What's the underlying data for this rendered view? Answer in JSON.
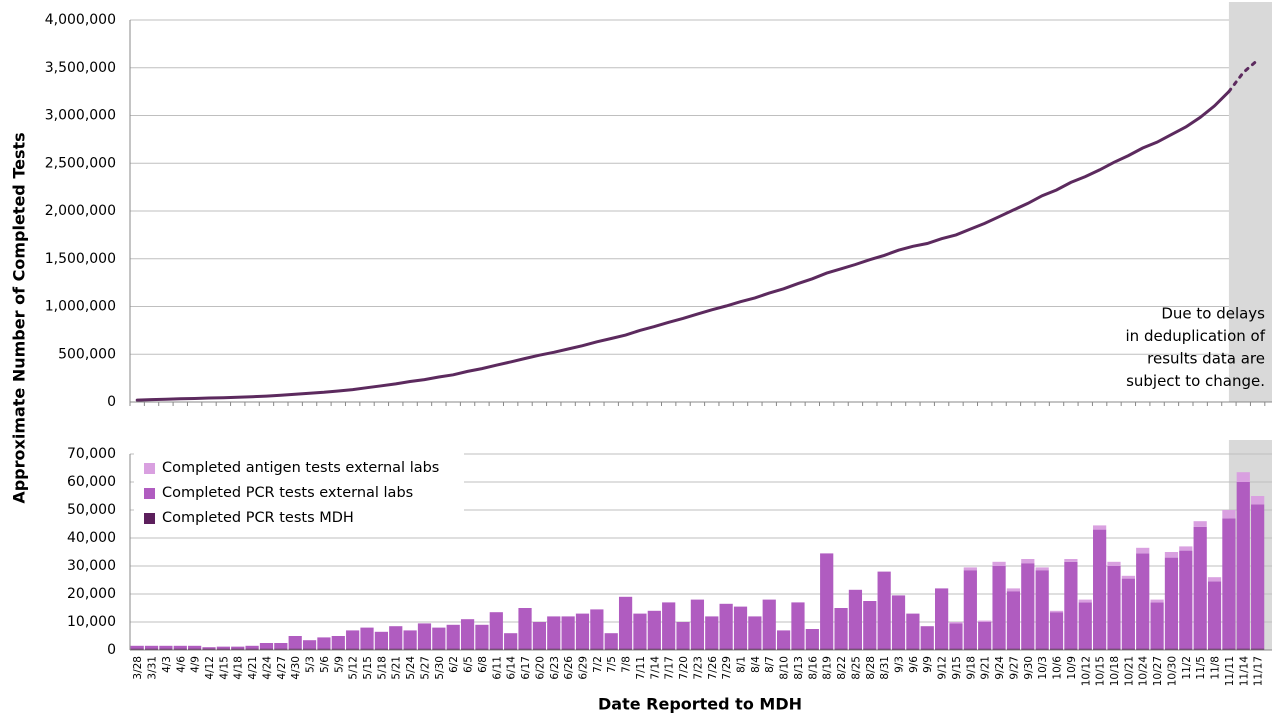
{
  "chart_data": [
    {
      "type": "line",
      "ylabel": "Approximate Number of Completed Tests",
      "ylim": [
        0,
        4000000
      ],
      "yticks": [
        0,
        {
          "value": 500000,
          "label": "500,000"
        },
        {
          "value": 1000000,
          "label": "1,000,000"
        },
        {
          "value": 1500000,
          "label": "1,500,000"
        },
        {
          "value": 2000000,
          "label": "2,000,000"
        },
        {
          "value": 2500000,
          "label": "2,500,000"
        },
        {
          "value": 3000000,
          "label": "3,000,000"
        },
        {
          "value": 3500000,
          "label": "3,500,000"
        },
        {
          "value": 4000000,
          "label": "4,000,000"
        }
      ],
      "grid": true,
      "annotation": [
        "Due to delays",
        "in deduplication of",
        "results data are",
        "subject to change."
      ],
      "series": [
        {
          "color": "#5c2a5e",
          "style": "solid",
          "values": [
            20000,
            25000,
            28000,
            33000,
            37000,
            42000,
            45000,
            50000,
            55000,
            62000,
            70000,
            82000,
            92000,
            102000,
            115000,
            130000,
            150000,
            170000,
            190000,
            215000,
            235000,
            262000,
            285000,
            320000,
            350000,
            385000,
            420000,
            455000,
            490000,
            520000,
            555000,
            590000,
            630000,
            665000,
            700000,
            750000,
            790000,
            835000,
            875000,
            920000,
            965000,
            1005000,
            1050000,
            1090000,
            1140000,
            1185000,
            1240000,
            1290000,
            1350000,
            1395000,
            1440000,
            1490000,
            1535000,
            1590000,
            1630000,
            1660000,
            1710000,
            1750000,
            1810000,
            1870000,
            1940000,
            2010000,
            2080000,
            2160000,
            2220000,
            2300000,
            2360000,
            2430000,
            2510000,
            2580000,
            2660000,
            2720000,
            2800000,
            2880000,
            2980000,
            3100000,
            3250000,
            null,
            null
          ]
        },
        {
          "color": "#5c2a5e",
          "style": "dotted",
          "shaded": true,
          "values": [
            null,
            null,
            null,
            null,
            null,
            null,
            null,
            null,
            null,
            null,
            null,
            null,
            null,
            null,
            null,
            null,
            null,
            null,
            null,
            null,
            null,
            null,
            null,
            null,
            null,
            null,
            null,
            null,
            null,
            null,
            null,
            null,
            null,
            null,
            null,
            null,
            null,
            null,
            null,
            null,
            null,
            null,
            null,
            null,
            null,
            null,
            null,
            null,
            null,
            null,
            null,
            null,
            null,
            null,
            null,
            null,
            null,
            null,
            null,
            null,
            null,
            null,
            null,
            null,
            null,
            null,
            null,
            null,
            null,
            null,
            null,
            null,
            null,
            null,
            null,
            null,
            3250000,
            3450000,
            3580000
          ]
        }
      ]
    },
    {
      "type": "stacked_bar",
      "xlabel": "Date Reported to MDH",
      "ylim": [
        0,
        70000
      ],
      "yticks": [
        0,
        {
          "value": 10000,
          "label": "10,000"
        },
        {
          "value": 20000,
          "label": "20,000"
        },
        {
          "value": 30000,
          "label": "30,000"
        },
        {
          "value": 40000,
          "label": "40,000"
        },
        {
          "value": 50000,
          "label": "50,000"
        },
        {
          "value": 60000,
          "label": "60,000"
        },
        {
          "value": 70000,
          "label": "70,000"
        }
      ],
      "grid": true,
      "legend": "upper left",
      "categories": [
        "3/28",
        "3/31",
        "4/3",
        "4/6",
        "4/9",
        "4/12",
        "4/15",
        "4/18",
        "4/21",
        "4/24",
        "4/27",
        "4/30",
        "5/3",
        "5/6",
        "5/9",
        "5/12",
        "5/15",
        "5/18",
        "5/21",
        "5/24",
        "5/27",
        "5/30",
        "6/2",
        "6/5",
        "6/8",
        "6/11",
        "6/14",
        "6/17",
        "6/20",
        "6/23",
        "6/26",
        "6/29",
        "7/2",
        "7/5",
        "7/8",
        "7/11",
        "7/14",
        "7/17",
        "7/20",
        "7/23",
        "7/26",
        "7/29",
        "8/1",
        "8/4",
        "8/7",
        "8/10",
        "8/13",
        "8/16",
        "8/19",
        "8/22",
        "8/25",
        "8/28",
        "8/31",
        "9/3",
        "9/6",
        "9/9",
        "9/12",
        "9/15",
        "9/18",
        "9/21",
        "9/24",
        "9/27",
        "9/30",
        "10/3",
        "10/6",
        "10/9",
        "10/12",
        "10/15",
        "10/18",
        "10/21",
        "10/24",
        "10/27",
        "10/30",
        "11/2",
        "11/5",
        "11/8",
        "11/11",
        "11/14",
        "11/17"
      ],
      "series": [
        {
          "name": "Completed PCR tests MDH",
          "color": "#5c1f5c",
          "values": [
            500,
            500,
            500,
            500,
            500,
            500,
            500,
            500,
            500,
            500,
            500,
            500,
            500,
            500,
            500,
            500,
            500,
            500,
            500,
            500,
            500,
            500,
            500,
            500,
            500,
            500,
            500,
            500,
            500,
            500,
            500,
            500,
            500,
            500,
            500,
            500,
            500,
            500,
            500,
            500,
            500,
            500,
            500,
            500,
            500,
            500,
            500,
            500,
            500,
            500,
            500,
            500,
            500,
            500,
            500,
            500,
            500,
            500,
            500,
            500,
            500,
            500,
            500,
            500,
            500,
            500,
            500,
            500,
            500,
            500,
            500,
            500,
            500,
            500,
            500,
            500,
            500,
            500,
            500
          ]
        },
        {
          "name": "Completed PCR tests external labs",
          "color": "#b05cc0",
          "values": [
            1000,
            1000,
            1000,
            1000,
            1000,
            500,
            700,
            700,
            1000,
            2000,
            2000,
            4500,
            3000,
            4000,
            4500,
            6500,
            7500,
            6000,
            8000,
            6500,
            9000,
            7500,
            8500,
            10500,
            8500,
            13000,
            5500,
            14500,
            9500,
            11500,
            11500,
            12500,
            14000,
            5500,
            18500,
            12500,
            13500,
            16500,
            9500,
            17500,
            11500,
            16000,
            15000,
            11500,
            17500,
            6500,
            16500,
            7000,
            34000,
            14500,
            21000,
            17000,
            27500,
            19000,
            12500,
            8000,
            21500,
            9000,
            28000,
            9500,
            29500,
            20500,
            30500,
            28000,
            13000,
            31000,
            16500,
            42500,
            29500,
            25000,
            34000,
            16500,
            32500,
            35000,
            43500,
            24000,
            46500,
            59500,
            51500
          ]
        },
        {
          "name": "Completed antigen tests external labs",
          "color": "#d9a0e0",
          "values": [
            0,
            0,
            0,
            0,
            0,
            0,
            0,
            0,
            0,
            0,
            0,
            0,
            0,
            0,
            0,
            0,
            0,
            0,
            0,
            0,
            0,
            0,
            0,
            0,
            0,
            0,
            0,
            0,
            0,
            0,
            0,
            0,
            0,
            0,
            0,
            0,
            0,
            0,
            0,
            0,
            0,
            0,
            0,
            0,
            0,
            0,
            0,
            0,
            0,
            0,
            0,
            0,
            0,
            0,
            0,
            0,
            0,
            500,
            1000,
            500,
            1500,
            1000,
            1500,
            1000,
            500,
            1000,
            1000,
            1500,
            1500,
            1000,
            2000,
            1000,
            2000,
            1500,
            2000,
            1500,
            3000,
            3500,
            3000
          ]
        }
      ]
    }
  ]
}
